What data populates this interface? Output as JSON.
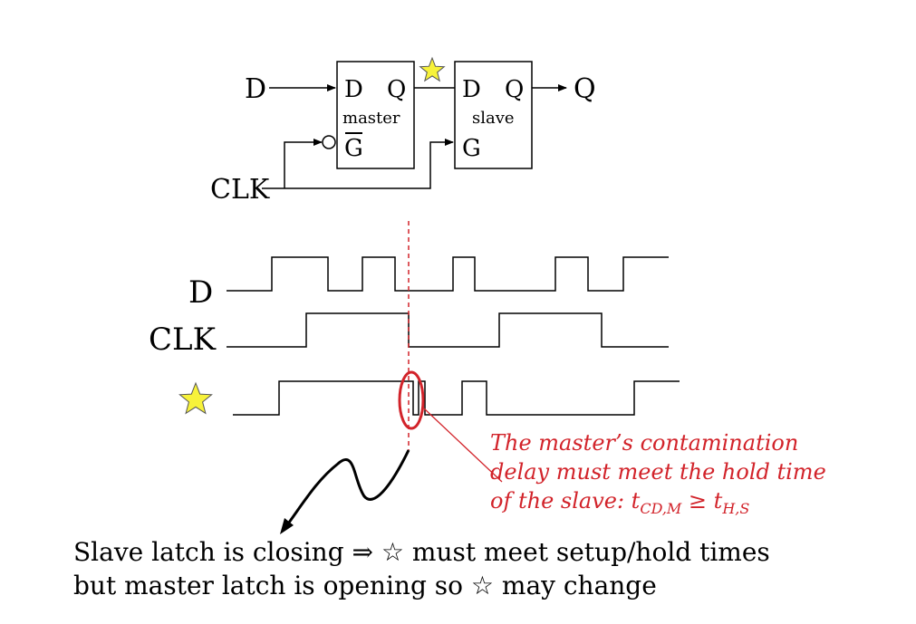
{
  "circuit": {
    "input_d": "D",
    "clk": "CLK",
    "output_q": "Q",
    "master": {
      "d": "D",
      "q": "Q",
      "name": "master",
      "g": "G"
    },
    "slave": {
      "d": "D",
      "q": "Q",
      "name": "slave",
      "g": "G"
    }
  },
  "waveforms": {
    "d_label": "D",
    "clk_label": "CLK"
  },
  "note": {
    "line1": "The master’s contamination",
    "line2": "delay must meet the hold time",
    "line3_prefix": "of the slave: t",
    "sub_cd": "CD,M",
    "ge": " ≥ t",
    "sub_hs": "H,S"
  },
  "caption": {
    "line1": "Slave latch is closing ⇒ ☆ must meet setup/hold times",
    "line2": "but master latch is opening so ☆ may change"
  },
  "colors": {
    "accent": "#d2232a",
    "star_fill": "#f7f23a",
    "star_stroke": "#555555"
  }
}
